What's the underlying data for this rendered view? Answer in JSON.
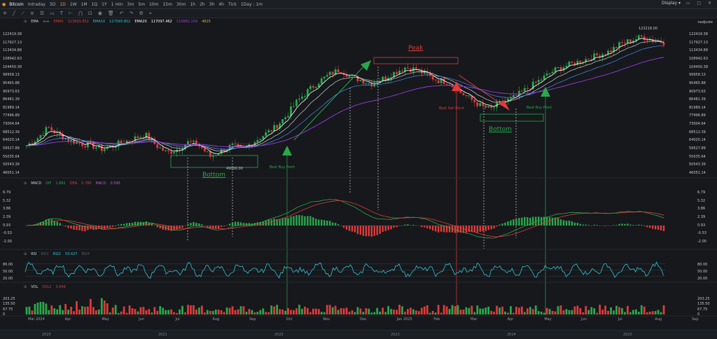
{
  "toolbar": {
    "symbol": "Bitcoin",
    "intervals": [
      "Intraday",
      "5D",
      "1D",
      "1W",
      "1M",
      "1Q",
      "1Y",
      "1 min",
      "3m",
      "5m",
      "10m",
      "15m",
      "30m",
      "1h",
      "2h",
      "3h",
      "4h",
      "Tick",
      "1Day : 1m"
    ],
    "active_interval": "1D",
    "display_label": "Display"
  },
  "ema_legend": {
    "name": "EMA",
    "ema_a": "EMA5",
    "ema_a_val": "113893.852",
    "ema_b": "EMA10",
    "ema_b_val": "117093.852",
    "ema_c": "EMA20",
    "ema_c_val": "117097.462",
    "trailing": "110882.159",
    "trailing2": "4825"
  },
  "nadjuste_label": "nadjuste",
  "price_axis_labels": [
    "122419.38",
    "117927.13",
    "113434.88",
    "108942.63",
    "104450.38",
    "99958.13",
    "95465.88",
    "90973.63",
    "86481.39",
    "81989.14",
    "77496.89",
    "73004.64",
    "68512.39",
    "64020.14",
    "59527.89",
    "55035.64",
    "50543.39",
    "46051.14"
  ],
  "high_label": "123218.00",
  "low_label": "49000.00",
  "annotations": {
    "peak": "Peak",
    "bottom_left": "Bottom",
    "bottom_right": "Bottom",
    "best_buy_left": "Best Buy Point",
    "best_buy_right": "Best Buy Point",
    "best_sell": "Best Sell Point"
  },
  "macd": {
    "name": "MACD",
    "dif_label": "DIF",
    "dif_val": "1.862",
    "dea_label": "DEA",
    "dea_val": "0.786",
    "macd_label": "MACD",
    "macd_val": "0.595",
    "axis": [
      "6.79",
      "5.32",
      "3.86",
      "2.39",
      "0.93",
      "-0.53",
      "-2.00"
    ]
  },
  "rsi": {
    "name": "RSI",
    "rsi1": "RSI1",
    "rsi2_label": "RSI2",
    "rsi2_val": "53.427",
    "rsi3": "RSI3",
    "axis": [
      "80.00",
      "50.00",
      "20.00"
    ]
  },
  "vol": {
    "name": "VOL",
    "vol1_label": "VOL1",
    "vol1_val": "3.649",
    "axis": [
      "203.25",
      "135.50",
      "67.75",
      "0"
    ]
  },
  "months": [
    "Mar 2024",
    "Apr",
    "May",
    "Jun",
    "Jul",
    "Aug",
    "Sep",
    "Oct",
    "Nov",
    "Dec",
    "Jan 2025",
    "Feb",
    "Mar",
    "Apr",
    "May",
    "Jun",
    "Jul",
    "Aug",
    "Sep"
  ],
  "years": [
    "2020",
    "2021",
    "2022",
    "2023",
    "2024",
    "2025"
  ],
  "colors": {
    "up": "#2aa84a",
    "down": "#e03a3a",
    "ema_white": "#ffffff",
    "ema_blue": "#4a8ff0",
    "ema_purple": "#9a3ce0",
    "rsi_line": "#2fc6d6"
  },
  "chart_data": {
    "type": "candlestick",
    "approx_closes": [
      60000,
      64000,
      70000,
      66000,
      63000,
      61000,
      60000,
      58000,
      60000,
      62000,
      64000,
      66000,
      60000,
      56000,
      58000,
      62000,
      60000,
      54000,
      57000,
      60000,
      58000,
      62000,
      66000,
      70000,
      76000,
      84000,
      90000,
      95000,
      99000,
      102000,
      98000,
      96000,
      94000,
      97000,
      100000,
      103000,
      102000,
      99000,
      96000,
      95000,
      90000,
      86000,
      82000,
      80000,
      84000,
      86000,
      90000,
      94000,
      98000,
      102000,
      104000,
      106000,
      108000,
      110000,
      112000,
      116000,
      118000,
      120000,
      118000,
      117000
    ],
    "ylim": [
      46051.14,
      122419.38
    ]
  }
}
